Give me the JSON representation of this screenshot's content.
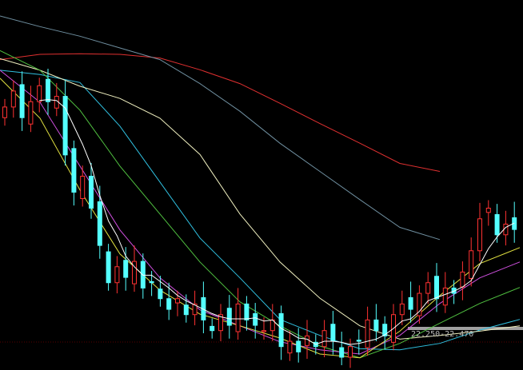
{
  "chart_data": {
    "type": "candlestick",
    "price_range_label": "22.250-22.470",
    "ylim": [
      21.56,
      28.51
    ],
    "closes": [
      26.5,
      26.8,
      26.3,
      26.6,
      26.9,
      26.6,
      26.7,
      25.6,
      24.9,
      25.2,
      24.6,
      23.9,
      23.2,
      23.5,
      23.3,
      23.6,
      23.1,
      23.2,
      22.9,
      22.7,
      22.9,
      22.6,
      22.8,
      22.5,
      22.3,
      22.6,
      22.4,
      22.8,
      22.5,
      22.4,
      22.3,
      22.5,
      22.0,
      22.1,
      21.9,
      22.2,
      22.0,
      22.3,
      22.1,
      21.8,
      22.0,
      22.1,
      22.5,
      22.3,
      22.2,
      22.6,
      22.8,
      22.7,
      23.0,
      23.2,
      22.9,
      23.1,
      23.0,
      23.4,
      23.8,
      24.4,
      24.6,
      24.1,
      24.3,
      24.2
    ],
    "moving_averages": [
      {
        "color": "#e03030",
        "values": [
          27.39,
          27.49,
          27.5,
          27.49,
          27.42,
          27.2,
          26.94,
          26.57,
          26.19,
          25.82,
          25.44,
          25.29
        ]
      },
      {
        "color": "#6f8fa0",
        "values": [
          28.21,
          28.01,
          27.83,
          27.61,
          27.39,
          26.94,
          26.42,
          25.82,
          25.29,
          24.76,
          24.24,
          24.01
        ]
      },
      {
        "color": "#30c0e0",
        "values": [
          27.19,
          27.11,
          26.96,
          26.14,
          25.09,
          24.04,
          23.29,
          22.51,
          22.21,
          21.96,
          21.94,
          22.06,
          22.31,
          22.51
        ]
      },
      {
        "color": "#f0f0c0",
        "values": [
          27.41,
          27.19,
          26.89,
          26.66,
          26.29,
          25.61,
          24.49,
          23.59,
          22.91,
          22.39,
          22.14,
          22.21,
          22.29,
          22.39
        ]
      },
      {
        "color": "#50c040",
        "values": [
          27.56,
          27.19,
          26.44,
          25.39,
          24.49,
          23.59,
          22.84,
          22.39,
          22.01,
          21.79,
          22.06,
          22.44,
          22.81,
          23.11
        ]
      },
      {
        "color": "#d050e0",
        "values": [
          27.19,
          26.59,
          25.39,
          24.19,
          23.29,
          22.69,
          22.39,
          22.09,
          21.94,
          21.86,
          22.21,
          22.81,
          23.29,
          23.59
        ]
      },
      {
        "color": "#e0e040",
        "values": [
          27.04,
          26.29,
          24.94,
          23.74,
          23.06,
          22.61,
          22.39,
          22.16,
          21.86,
          21.79,
          22.29,
          22.96,
          23.56,
          23.86
        ]
      }
    ],
    "colors": {
      "up": "#ff3232",
      "down": "#54ffff",
      "ma5": "#ffffff",
      "background": "#000000"
    }
  }
}
